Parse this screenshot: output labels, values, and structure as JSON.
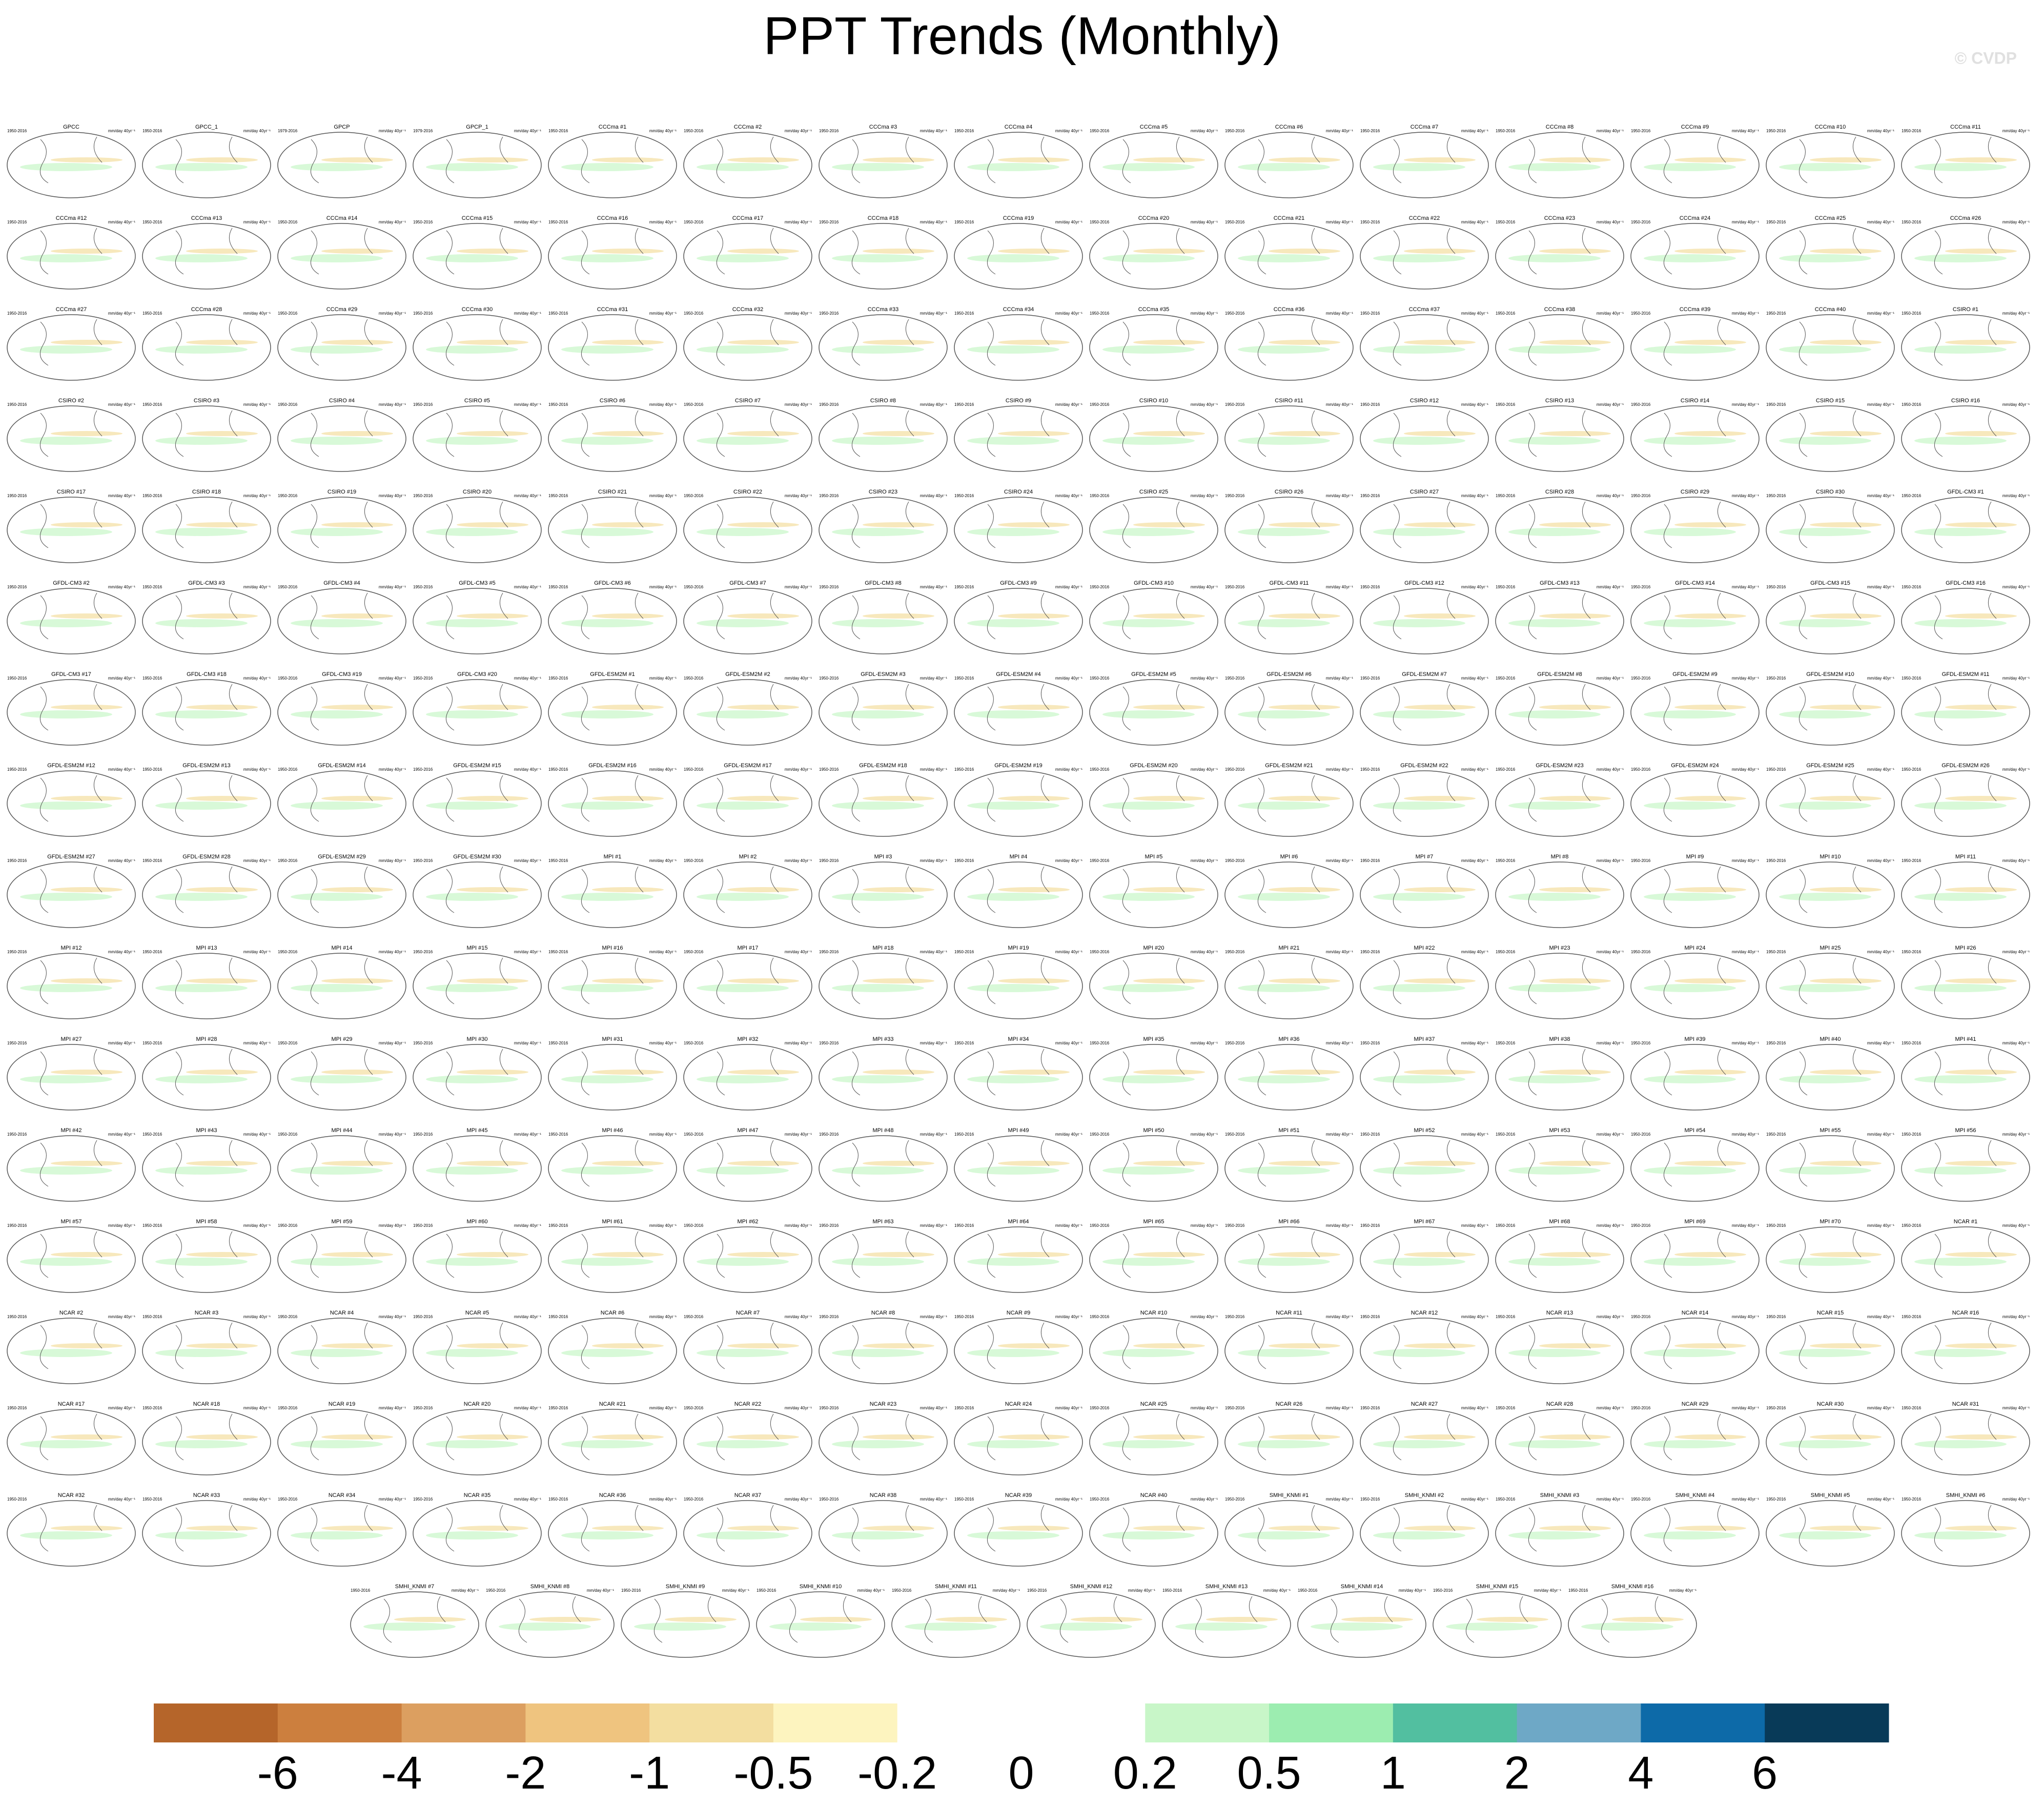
{
  "title": "PPT Trends (Monthly)",
  "watermark": "© CVDP",
  "units": "mm/day 40yr⁻¹",
  "panel_titles": [
    "GPCC",
    "GPCC_1",
    "GPCP",
    "GPCP_1",
    "CCCma #1",
    "CCCma #2",
    "CCCma #3",
    "CCCma #4",
    "CCCma #5",
    "CCCma #6",
    "CCCma #7",
    "CCCma #8",
    "CCCma #9",
    "CCCma #10",
    "CCCma #11",
    "CCCma #12",
    "CCCma #13",
    "CCCma #14",
    "CCCma #15",
    "CCCma #16",
    "CCCma #17",
    "CCCma #18",
    "CCCma #19",
    "CCCma #20",
    "CCCma #21",
    "CCCma #22",
    "CCCma #23",
    "CCCma #24",
    "CCCma #25",
    "CCCma #26",
    "CCCma #27",
    "CCCma #28",
    "CCCma #29",
    "CCCma #30",
    "CCCma #31",
    "CCCma #32",
    "CCCma #33",
    "CCCma #34",
    "CCCma #35",
    "CCCma #36",
    "CCCma #37",
    "CCCma #38",
    "CCCma #39",
    "CCCma #40",
    "CSIRO #1",
    "CSIRO #2",
    "CSIRO #3",
    "CSIRO #4",
    "CSIRO #5",
    "CSIRO #6",
    "CSIRO #7",
    "CSIRO #8",
    "CSIRO #9",
    "CSIRO #10",
    "CSIRO #11",
    "CSIRO #12",
    "CSIRO #13",
    "CSIRO #14",
    "CSIRO #15",
    "CSIRO #16",
    "CSIRO #17",
    "CSIRO #18",
    "CSIRO #19",
    "CSIRO #20",
    "CSIRO #21",
    "CSIRO #22",
    "CSIRO #23",
    "CSIRO #24",
    "CSIRO #25",
    "CSIRO #26",
    "CSIRO #27",
    "CSIRO #28",
    "CSIRO #29",
    "CSIRO #30",
    "GFDL-CM3 #1",
    "GFDL-CM3 #2",
    "GFDL-CM3 #3",
    "GFDL-CM3 #4",
    "GFDL-CM3 #5",
    "GFDL-CM3 #6",
    "GFDL-CM3 #7",
    "GFDL-CM3 #8",
    "GFDL-CM3 #9",
    "GFDL-CM3 #10",
    "GFDL-CM3 #11",
    "GFDL-CM3 #12",
    "GFDL-CM3 #13",
    "GFDL-CM3 #14",
    "GFDL-CM3 #15",
    "GFDL-CM3 #16",
    "GFDL-CM3 #17",
    "GFDL-CM3 #18",
    "GFDL-CM3 #19",
    "GFDL-CM3 #20",
    "GFDL-ESM2M #1",
    "GFDL-ESM2M #2",
    "GFDL-ESM2M #3",
    "GFDL-ESM2M #4",
    "GFDL-ESM2M #5",
    "GFDL-ESM2M #6",
    "GFDL-ESM2M #7",
    "GFDL-ESM2M #8",
    "GFDL-ESM2M #9",
    "GFDL-ESM2M #10",
    "GFDL-ESM2M #11",
    "GFDL-ESM2M #12",
    "GFDL-ESM2M #13",
    "GFDL-ESM2M #14",
    "GFDL-ESM2M #15",
    "GFDL-ESM2M #16",
    "GFDL-ESM2M #17",
    "GFDL-ESM2M #18",
    "GFDL-ESM2M #19",
    "GFDL-ESM2M #20",
    "GFDL-ESM2M #21",
    "GFDL-ESM2M #22",
    "GFDL-ESM2M #23",
    "GFDL-ESM2M #24",
    "GFDL-ESM2M #25",
    "GFDL-ESM2M #26",
    "GFDL-ESM2M #27",
    "GFDL-ESM2M #28",
    "GFDL-ESM2M #29",
    "GFDL-ESM2M #30",
    "MPI #1",
    "MPI #2",
    "MPI #3",
    "MPI #4",
    "MPI #5",
    "MPI #6",
    "MPI #7",
    "MPI #8",
    "MPI #9",
    "MPI #10",
    "MPI #11",
    "MPI #12",
    "MPI #13",
    "MPI #14",
    "MPI #15",
    "MPI #16",
    "MPI #17",
    "MPI #18",
    "MPI #19",
    "MPI #20",
    "MPI #21",
    "MPI #22",
    "MPI #23",
    "MPI #24",
    "MPI #25",
    "MPI #26",
    "MPI #27",
    "MPI #28",
    "MPI #29",
    "MPI #30",
    "MPI #31",
    "MPI #32",
    "MPI #33",
    "MPI #34",
    "MPI #35",
    "MPI #36",
    "MPI #37",
    "MPI #38",
    "MPI #39",
    "MPI #40",
    "MPI #41",
    "MPI #42",
    "MPI #43",
    "MPI #44",
    "MPI #45",
    "MPI #46",
    "MPI #47",
    "MPI #48",
    "MPI #49",
    "MPI #50",
    "MPI #51",
    "MPI #52",
    "MPI #53",
    "MPI #54",
    "MPI #55",
    "MPI #56",
    "MPI #57",
    "MPI #58",
    "MPI #59",
    "MPI #60",
    "MPI #61",
    "MPI #62",
    "MPI #63",
    "MPI #64",
    "MPI #65",
    "MPI #66",
    "MPI #67",
    "MPI #68",
    "MPI #69",
    "MPI #70",
    "NCAR #1",
    "NCAR #2",
    "NCAR #3",
    "NCAR #4",
    "NCAR #5",
    "NCAR #6",
    "NCAR #7",
    "NCAR #8",
    "NCAR #9",
    "NCAR #10",
    "NCAR #11",
    "NCAR #12",
    "NCAR #13",
    "NCAR #14",
    "NCAR #15",
    "NCAR #16",
    "NCAR #17",
    "NCAR #18",
    "NCAR #19",
    "NCAR #20",
    "NCAR #21",
    "NCAR #22",
    "NCAR #23",
    "NCAR #24",
    "NCAR #25",
    "NCAR #26",
    "NCAR #27",
    "NCAR #28",
    "NCAR #29",
    "NCAR #30",
    "NCAR #31",
    "NCAR #32",
    "NCAR #33",
    "NCAR #34",
    "NCAR #35",
    "NCAR #36",
    "NCAR #37",
    "NCAR #38",
    "NCAR #39",
    "NCAR #40",
    "SMHI_KNMI #1",
    "SMHI_KNMI #2",
    "SMHI_KNMI #3",
    "SMHI_KNMI #4",
    "SMHI_KNMI #5",
    "SMHI_KNMI #6",
    "SMHI_KNMI #7",
    "SMHI_KNMI #8",
    "SMHI_KNMI #9",
    "SMHI_KNMI #10",
    "SMHI_KNMI #11",
    "SMHI_KNMI #12",
    "SMHI_KNMI #13",
    "SMHI_KNMI #14",
    "SMHI_KNMI #15",
    "SMHI_KNMI #16"
  ],
  "panel_periods": [
    "1950-2016",
    "1950-2016",
    "1979-2016",
    "1979-2016",
    "1950-2016",
    "1950-2016",
    "1950-2016",
    "1950-2016",
    "1950-2016",
    "1950-2016",
    "1950-2016",
    "1950-2016",
    "1950-2016",
    "1950-2016",
    "1950-2016",
    "1950-2016",
    "1950-2016",
    "1950-2016",
    "1950-2016",
    "1950-2016",
    "1950-2016",
    "1950-2016",
    "1950-2016",
    "1950-2016",
    "1950-2016",
    "1950-2016",
    "1950-2016",
    "1950-2016",
    "1950-2016",
    "1950-2016",
    "1950-2016",
    "1950-2016",
    "1950-2016",
    "1950-2016",
    "1950-2016",
    "1950-2016",
    "1950-2016",
    "1950-2016",
    "1950-2016",
    "1950-2016",
    "1950-2016",
    "1950-2016",
    "1950-2016",
    "1950-2016",
    "1950-2016",
    "1950-2016",
    "1950-2016",
    "1950-2016",
    "1950-2016",
    "1950-2016",
    "1950-2016",
    "1950-2016",
    "1950-2016",
    "1950-2016",
    "1950-2016",
    "1950-2016",
    "1950-2016",
    "1950-2016",
    "1950-2016",
    "1950-2016",
    "1950-2016",
    "1950-2016",
    "1950-2016",
    "1950-2016",
    "1950-2016",
    "1950-2016",
    "1950-2016",
    "1950-2016",
    "1950-2016",
    "1950-2016",
    "1950-2016",
    "1950-2016",
    "1950-2016",
    "1950-2016",
    "1950-2016",
    "1950-2016",
    "1950-2016",
    "1950-2016",
    "1950-2016",
    "1950-2016",
    "1950-2016",
    "1950-2016",
    "1950-2016",
    "1950-2016",
    "1950-2016",
    "1950-2016",
    "1950-2016",
    "1950-2016",
    "1950-2016",
    "1950-2016",
    "1950-2016",
    "1950-2016",
    "1950-2016",
    "1950-2016",
    "1950-2016",
    "1950-2016",
    "1950-2016",
    "1950-2016",
    "1950-2016",
    "1950-2016",
    "1950-2016",
    "1950-2016",
    "1950-2016",
    "1950-2016",
    "1950-2016",
    "1950-2016",
    "1950-2016",
    "1950-2016",
    "1950-2016",
    "1950-2016",
    "1950-2016",
    "1950-2016",
    "1950-2016",
    "1950-2016",
    "1950-2016",
    "1950-2016",
    "1950-2016",
    "1950-2016",
    "1950-2016",
    "1950-2016",
    "1950-2016",
    "1950-2016",
    "1950-2016",
    "1950-2016",
    "1950-2016",
    "1950-2016",
    "1950-2016",
    "1950-2016",
    "1950-2016",
    "1950-2016",
    "1950-2016",
    "1950-2016",
    "1950-2016",
    "1950-2016",
    "1950-2016",
    "1950-2016",
    "1950-2016",
    "1950-2016",
    "1950-2016",
    "1950-2016",
    "1950-2016",
    "1950-2016",
    "1950-2016",
    "1950-2016",
    "1950-2016",
    "1950-2016",
    "1950-2016",
    "1950-2016",
    "1950-2016",
    "1950-2016",
    "1950-2016",
    "1950-2016",
    "1950-2016",
    "1950-2016",
    "1950-2016",
    "1950-2016",
    "1950-2016",
    "1950-2016",
    "1950-2016",
    "1950-2016",
    "1950-2016",
    "1950-2016",
    "1950-2016",
    "1950-2016",
    "1950-2016",
    "1950-2016",
    "1950-2016",
    "1950-2016",
    "1950-2016",
    "1950-2016",
    "1950-2016",
    "1950-2016",
    "1950-2016",
    "1950-2016",
    "1950-2016",
    "1950-2016",
    "1950-2016",
    "1950-2016",
    "1950-2016",
    "1950-2016",
    "1950-2016",
    "1950-2016",
    "1950-2016",
    "1950-2016",
    "1950-2016",
    "1950-2016",
    "1950-2016",
    "1950-2016",
    "1950-2016",
    "1950-2016",
    "1950-2016",
    "1950-2016",
    "1950-2016",
    "1950-2016",
    "1950-2016",
    "1950-2016",
    "1950-2016",
    "1950-2016",
    "1950-2016",
    "1950-2016",
    "1950-2016",
    "1950-2016",
    "1950-2016",
    "1950-2016",
    "1950-2016",
    "1950-2016",
    "1950-2016",
    "1950-2016",
    "1950-2016",
    "1950-2016",
    "1950-2016",
    "1950-2016",
    "1950-2016",
    "1950-2016",
    "1950-2016",
    "1950-2016",
    "1950-2016",
    "1950-2016",
    "1950-2016",
    "1950-2016",
    "1950-2016",
    "1950-2016",
    "1950-2016",
    "1950-2016",
    "1950-2016",
    "1950-2016",
    "1950-2016",
    "1950-2016",
    "1950-2016",
    "1950-2016",
    "1950-2016",
    "1950-2016",
    "1950-2016",
    "1950-2016",
    "1950-2016",
    "1950-2016",
    "1950-2016",
    "1950-2016",
    "1950-2016",
    "1950-2016",
    "1950-2016",
    "1950-2016",
    "1950-2016",
    "1950-2016",
    "1950-2016",
    "1950-2016",
    "1950-2016",
    "1950-2016",
    "1950-2016",
    "1950-2016"
  ],
  "colorbar": {
    "levels": [
      -6,
      -4,
      -2,
      -1,
      -0.5,
      -0.2,
      0,
      0.2,
      0.5,
      1,
      2,
      4,
      6
    ],
    "colors": [
      "#b5652a",
      "#cc7f3e",
      "#dc9f60",
      "#efc47f",
      "#f3dea0",
      "#fdf4bf",
      "#ffffff",
      "#ffffff",
      "#c8f6c8",
      "#9cedb0",
      "#52bfa0",
      "#6ea8c6",
      "#0d6aa8",
      "#083a58"
    ]
  }
}
